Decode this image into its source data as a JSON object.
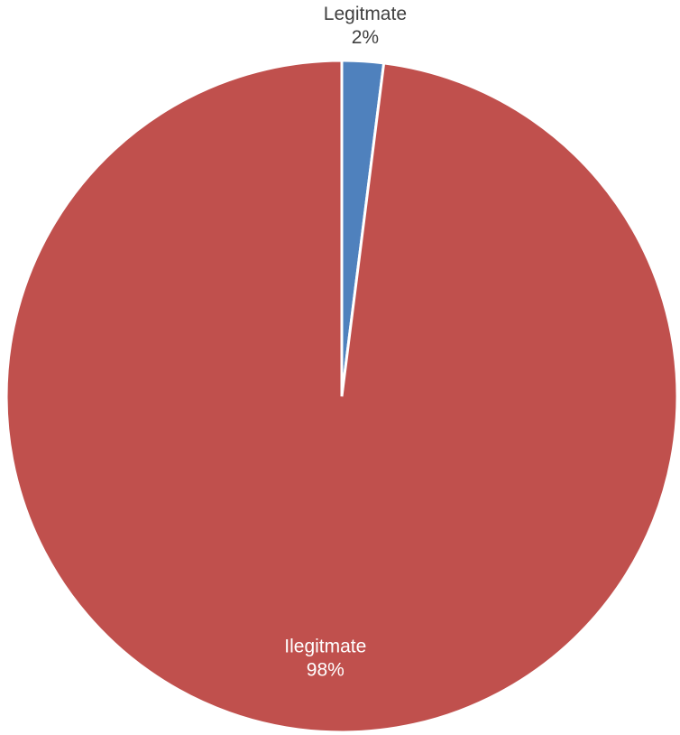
{
  "chart_data": {
    "type": "pie",
    "title": "",
    "slices": [
      {
        "name": "Legitmate",
        "value": 2,
        "label": "2%",
        "color": "#4f81bd",
        "label_color": "#404040"
      },
      {
        "name": "Ilegitmate",
        "value": 98,
        "label": "98%",
        "color": "#c0504d",
        "label_color": "#ffffff"
      }
    ],
    "start_angle_deg": 0,
    "direction": "clockwise",
    "legend": "none"
  }
}
